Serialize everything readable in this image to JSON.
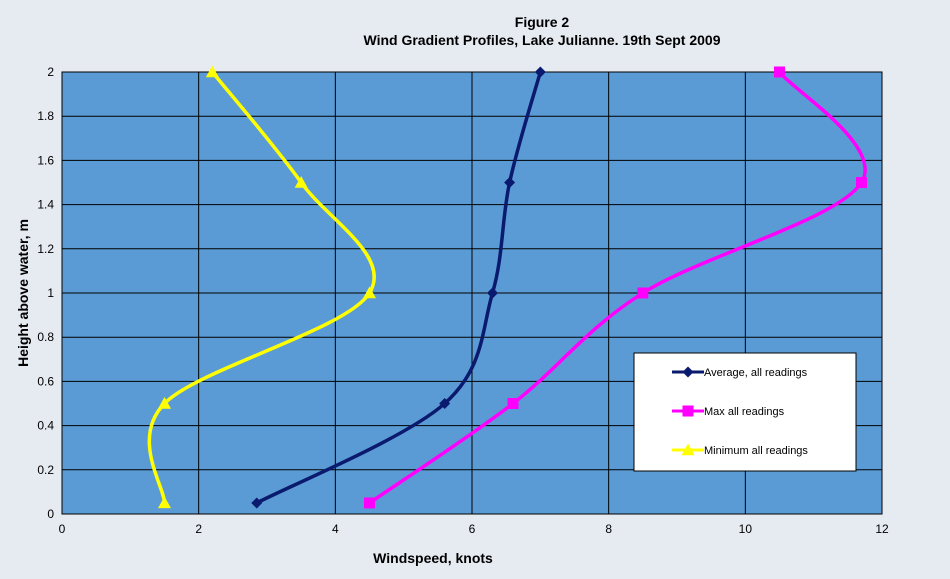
{
  "chart_data": {
    "type": "line",
    "title": "Figure 2",
    "subtitle": "Wind Gradient Profiles, Lake Julianne. 19th Sept 2009",
    "xlabel": "Windspeed,  knots",
    "ylabel": "Height  above  water, m",
    "xlim": [
      0,
      12
    ],
    "ylim": [
      0,
      2
    ],
    "xticks": [
      "0",
      "2",
      "4",
      "6",
      "8",
      "10",
      "12"
    ],
    "yticks": [
      "0",
      "0.2",
      "0.4",
      "0.6",
      "0.8",
      "1",
      "1.2",
      "1.4",
      "1.6",
      "1.8",
      "2"
    ],
    "grid": true,
    "smoothed": true,
    "legend_position": "right",
    "series": [
      {
        "name": "Average, all readings",
        "color": "#0a1a6e",
        "marker": "diamond",
        "points": [
          [
            2.85,
            0.05
          ],
          [
            5.6,
            0.5
          ],
          [
            6.3,
            1.0
          ],
          [
            6.55,
            1.5
          ],
          [
            7.0,
            2.0
          ]
        ]
      },
      {
        "name": "Max all readings",
        "color": "#ff00ff",
        "marker": "square",
        "points": [
          [
            4.5,
            0.05
          ],
          [
            6.6,
            0.5
          ],
          [
            8.5,
            1.0
          ],
          [
            11.7,
            1.5
          ],
          [
            10.5,
            2.0
          ]
        ]
      },
      {
        "name": "Minimum all readings",
        "color": "#ffff00",
        "marker": "triangle",
        "points": [
          [
            1.5,
            0.05
          ],
          [
            1.5,
            0.5
          ],
          [
            4.5,
            1.0
          ],
          [
            3.5,
            1.5
          ],
          [
            2.2,
            2.0
          ]
        ]
      }
    ],
    "plot_background": "#5b9bd5"
  }
}
